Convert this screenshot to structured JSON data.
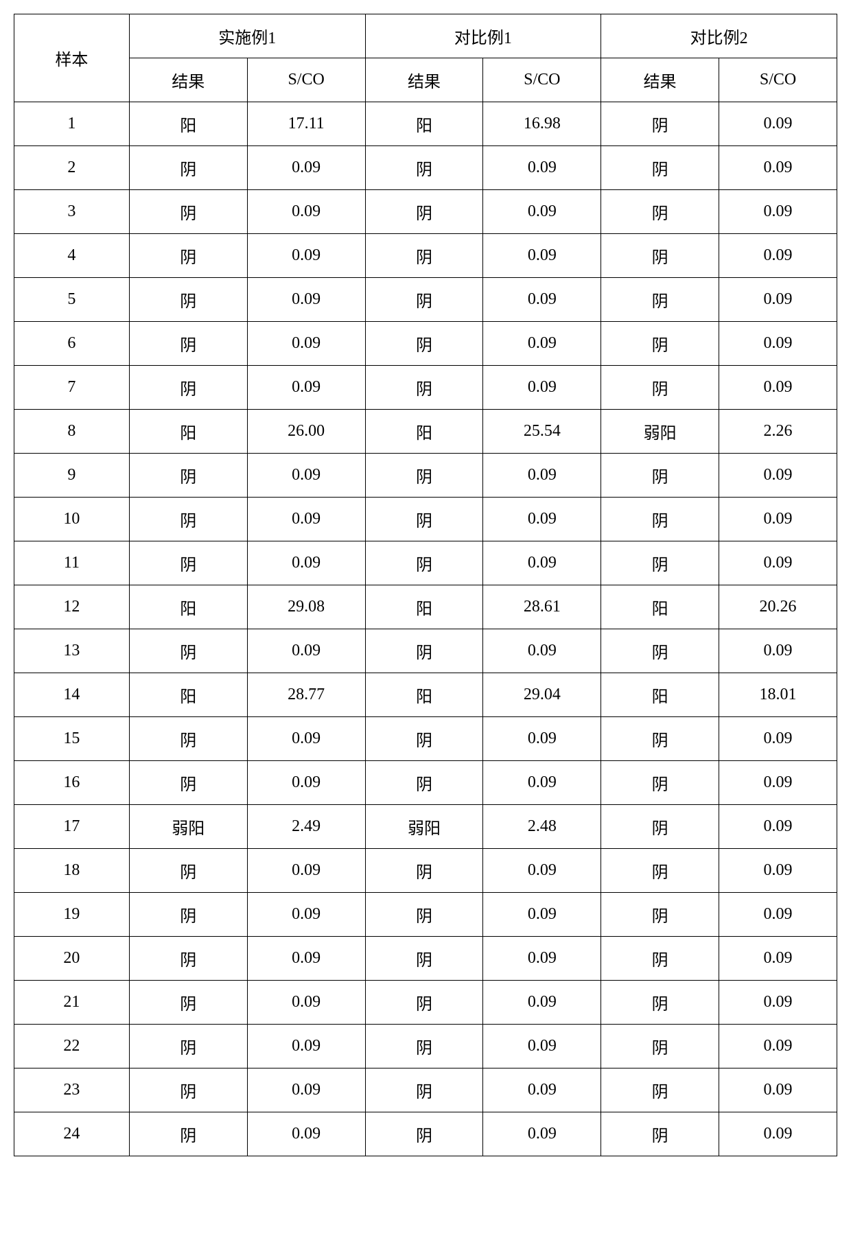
{
  "table": {
    "type": "table",
    "background_color": "#ffffff",
    "border_color": "#000000",
    "text_color": "#000000",
    "font_size": 24,
    "font_family": "SimSun",
    "header": {
      "sample_label": "样本",
      "groups": [
        {
          "label": "实施例1",
          "result_label": "结果",
          "sco_label": "S/CO"
        },
        {
          "label": "对比例1",
          "result_label": "结果",
          "sco_label": "S/CO"
        },
        {
          "label": "对比例2",
          "result_label": "结果",
          "sco_label": "S/CO"
        }
      ]
    },
    "columns": [
      {
        "key": "sample",
        "width_pct": 14,
        "align": "center"
      },
      {
        "key": "g1_result",
        "width_pct": 14.3,
        "align": "center"
      },
      {
        "key": "g1_sco",
        "width_pct": 14.3,
        "align": "center"
      },
      {
        "key": "g2_result",
        "width_pct": 14.3,
        "align": "center"
      },
      {
        "key": "g2_sco",
        "width_pct": 14.3,
        "align": "center"
      },
      {
        "key": "g3_result",
        "width_pct": 14.3,
        "align": "center"
      },
      {
        "key": "g3_sco",
        "width_pct": 14.3,
        "align": "center"
      }
    ],
    "rows": [
      {
        "sample": "1",
        "g1_result": "阳",
        "g1_sco": "17.11",
        "g2_result": "阳",
        "g2_sco": "16.98",
        "g3_result": "阴",
        "g3_sco": "0.09"
      },
      {
        "sample": "2",
        "g1_result": "阴",
        "g1_sco": "0.09",
        "g2_result": "阴",
        "g2_sco": "0.09",
        "g3_result": "阴",
        "g3_sco": "0.09"
      },
      {
        "sample": "3",
        "g1_result": "阴",
        "g1_sco": "0.09",
        "g2_result": "阴",
        "g2_sco": "0.09",
        "g3_result": "阴",
        "g3_sco": "0.09"
      },
      {
        "sample": "4",
        "g1_result": "阴",
        "g1_sco": "0.09",
        "g2_result": "阴",
        "g2_sco": "0.09",
        "g3_result": "阴",
        "g3_sco": "0.09"
      },
      {
        "sample": "5",
        "g1_result": "阴",
        "g1_sco": "0.09",
        "g2_result": "阴",
        "g2_sco": "0.09",
        "g3_result": "阴",
        "g3_sco": "0.09"
      },
      {
        "sample": "6",
        "g1_result": "阴",
        "g1_sco": "0.09",
        "g2_result": "阴",
        "g2_sco": "0.09",
        "g3_result": "阴",
        "g3_sco": "0.09"
      },
      {
        "sample": "7",
        "g1_result": "阴",
        "g1_sco": "0.09",
        "g2_result": "阴",
        "g2_sco": "0.09",
        "g3_result": "阴",
        "g3_sco": "0.09"
      },
      {
        "sample": "8",
        "g1_result": "阳",
        "g1_sco": "26.00",
        "g2_result": "阳",
        "g2_sco": "25.54",
        "g3_result": "弱阳",
        "g3_sco": "2.26"
      },
      {
        "sample": "9",
        "g1_result": "阴",
        "g1_sco": "0.09",
        "g2_result": "阴",
        "g2_sco": "0.09",
        "g3_result": "阴",
        "g3_sco": "0.09"
      },
      {
        "sample": "10",
        "g1_result": "阴",
        "g1_sco": "0.09",
        "g2_result": "阴",
        "g2_sco": "0.09",
        "g3_result": "阴",
        "g3_sco": "0.09"
      },
      {
        "sample": "11",
        "g1_result": "阴",
        "g1_sco": "0.09",
        "g2_result": "阴",
        "g2_sco": "0.09",
        "g3_result": "阴",
        "g3_sco": "0.09"
      },
      {
        "sample": "12",
        "g1_result": "阳",
        "g1_sco": "29.08",
        "g2_result": "阳",
        "g2_sco": "28.61",
        "g3_result": "阳",
        "g3_sco": "20.26"
      },
      {
        "sample": "13",
        "g1_result": "阴",
        "g1_sco": "0.09",
        "g2_result": "阴",
        "g2_sco": "0.09",
        "g3_result": "阴",
        "g3_sco": "0.09"
      },
      {
        "sample": "14",
        "g1_result": "阳",
        "g1_sco": "28.77",
        "g2_result": "阳",
        "g2_sco": "29.04",
        "g3_result": "阳",
        "g3_sco": "18.01"
      },
      {
        "sample": "15",
        "g1_result": "阴",
        "g1_sco": "0.09",
        "g2_result": "阴",
        "g2_sco": "0.09",
        "g3_result": "阴",
        "g3_sco": "0.09"
      },
      {
        "sample": "16",
        "g1_result": "阴",
        "g1_sco": "0.09",
        "g2_result": "阴",
        "g2_sco": "0.09",
        "g3_result": "阴",
        "g3_sco": "0.09"
      },
      {
        "sample": "17",
        "g1_result": "弱阳",
        "g1_sco": "2.49",
        "g2_result": "弱阳",
        "g2_sco": "2.48",
        "g3_result": "阴",
        "g3_sco": "0.09"
      },
      {
        "sample": "18",
        "g1_result": "阴",
        "g1_sco": "0.09",
        "g2_result": "阴",
        "g2_sco": "0.09",
        "g3_result": "阴",
        "g3_sco": "0.09"
      },
      {
        "sample": "19",
        "g1_result": "阴",
        "g1_sco": "0.09",
        "g2_result": "阴",
        "g2_sco": "0.09",
        "g3_result": "阴",
        "g3_sco": "0.09"
      },
      {
        "sample": "20",
        "g1_result": "阴",
        "g1_sco": "0.09",
        "g2_result": "阴",
        "g2_sco": "0.09",
        "g3_result": "阴",
        "g3_sco": "0.09"
      },
      {
        "sample": "21",
        "g1_result": "阴",
        "g1_sco": "0.09",
        "g2_result": "阴",
        "g2_sco": "0.09",
        "g3_result": "阴",
        "g3_sco": "0.09"
      },
      {
        "sample": "22",
        "g1_result": "阴",
        "g1_sco": "0.09",
        "g2_result": "阴",
        "g2_sco": "0.09",
        "g3_result": "阴",
        "g3_sco": "0.09"
      },
      {
        "sample": "23",
        "g1_result": "阴",
        "g1_sco": "0.09",
        "g2_result": "阴",
        "g2_sco": "0.09",
        "g3_result": "阴",
        "g3_sco": "0.09"
      },
      {
        "sample": "24",
        "g1_result": "阴",
        "g1_sco": "0.09",
        "g2_result": "阴",
        "g2_sco": "0.09",
        "g3_result": "阴",
        "g3_sco": "0.09"
      }
    ]
  }
}
